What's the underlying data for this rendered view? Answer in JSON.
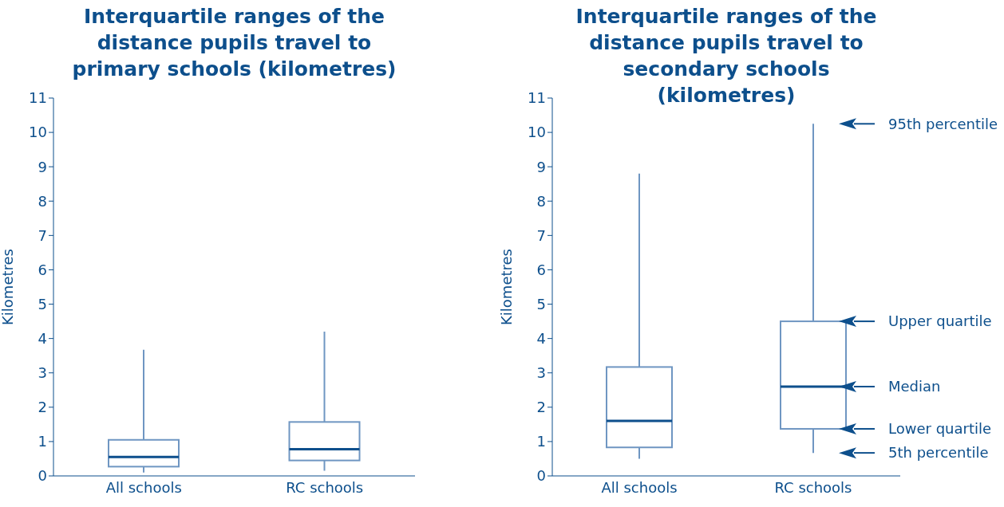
{
  "chart_data": [
    {
      "type": "box",
      "title": "Interquartile ranges of the distance pupils travel to primary schools (kilometres)",
      "ylabel": "Kilometres",
      "categories": [
        "All schools",
        "RC schools"
      ],
      "color": "#6f96c2",
      "ylim": [
        0,
        11
      ],
      "yticks": [
        0,
        1,
        2,
        3,
        4,
        5,
        6,
        7,
        8,
        9,
        10,
        11
      ],
      "grid": false,
      "boxes": [
        {
          "low": 0.1,
          "q1": 0.27,
          "median": 0.55,
          "q3": 1.05,
          "high": 3.67
        },
        {
          "low": 0.15,
          "q1": 0.45,
          "median": 0.78,
          "q3": 1.57,
          "high": 4.2
        }
      ]
    },
    {
      "type": "box",
      "title": "Interquartile ranges of the distance pupils travel to secondary schools (kilometres)",
      "ylabel": "Kilometres",
      "categories": [
        "All schools",
        "RC schools"
      ],
      "color": "#6f96c2",
      "ylim": [
        0,
        11
      ],
      "yticks": [
        0,
        1,
        2,
        3,
        4,
        5,
        6,
        7,
        8,
        9,
        10,
        11
      ],
      "grid": false,
      "boxes": [
        {
          "low": 0.5,
          "q1": 0.83,
          "median": 1.6,
          "q3": 3.17,
          "high": 8.8
        },
        {
          "low": 0.67,
          "q1": 1.37,
          "median": 2.6,
          "q3": 4.5,
          "high": 10.25
        }
      ],
      "annotations": [
        "95th percentile",
        "Upper quartile",
        "Median",
        "Lower quartile",
        "5th percentile"
      ]
    }
  ]
}
